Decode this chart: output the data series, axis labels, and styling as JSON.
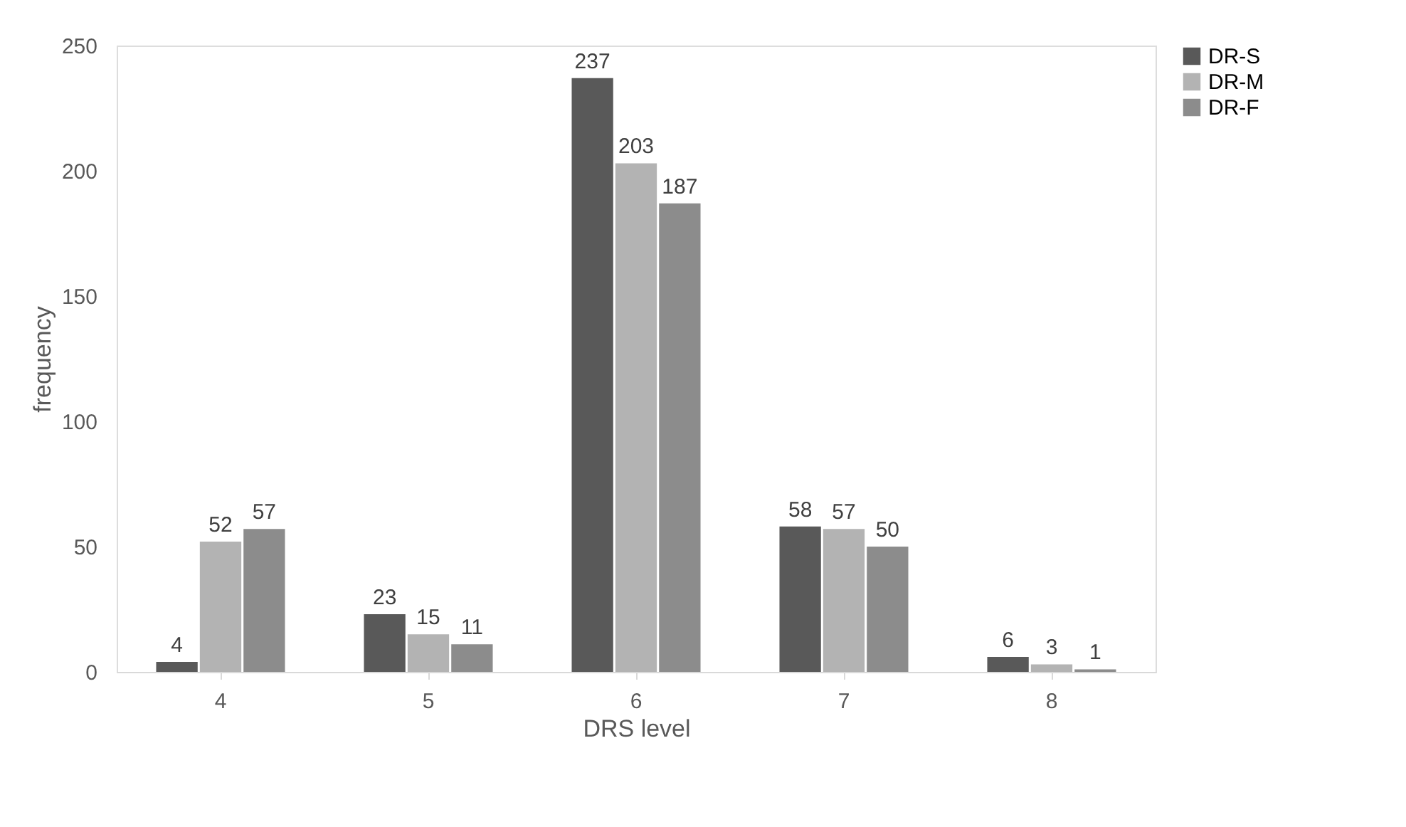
{
  "chart_data": {
    "type": "bar",
    "xlabel": "DRS level",
    "ylabel": "frequency",
    "categories": [
      "4",
      "5",
      "6",
      "7",
      "8"
    ],
    "series": [
      {
        "name": "DR-S",
        "color": "#595959",
        "values": [
          4,
          23,
          237,
          58,
          6
        ]
      },
      {
        "name": "DR-M",
        "color": "#b3b3b3",
        "values": [
          52,
          15,
          203,
          57,
          3
        ]
      },
      {
        "name": "DR-F",
        "color": "#8c8c8c",
        "values": [
          57,
          11,
          187,
          50,
          1
        ]
      }
    ],
    "ylim": [
      0,
      250
    ],
    "yticks": [
      0,
      50,
      100,
      150,
      200,
      250
    ],
    "grid": false,
    "legend": "right",
    "data_labels": true
  }
}
